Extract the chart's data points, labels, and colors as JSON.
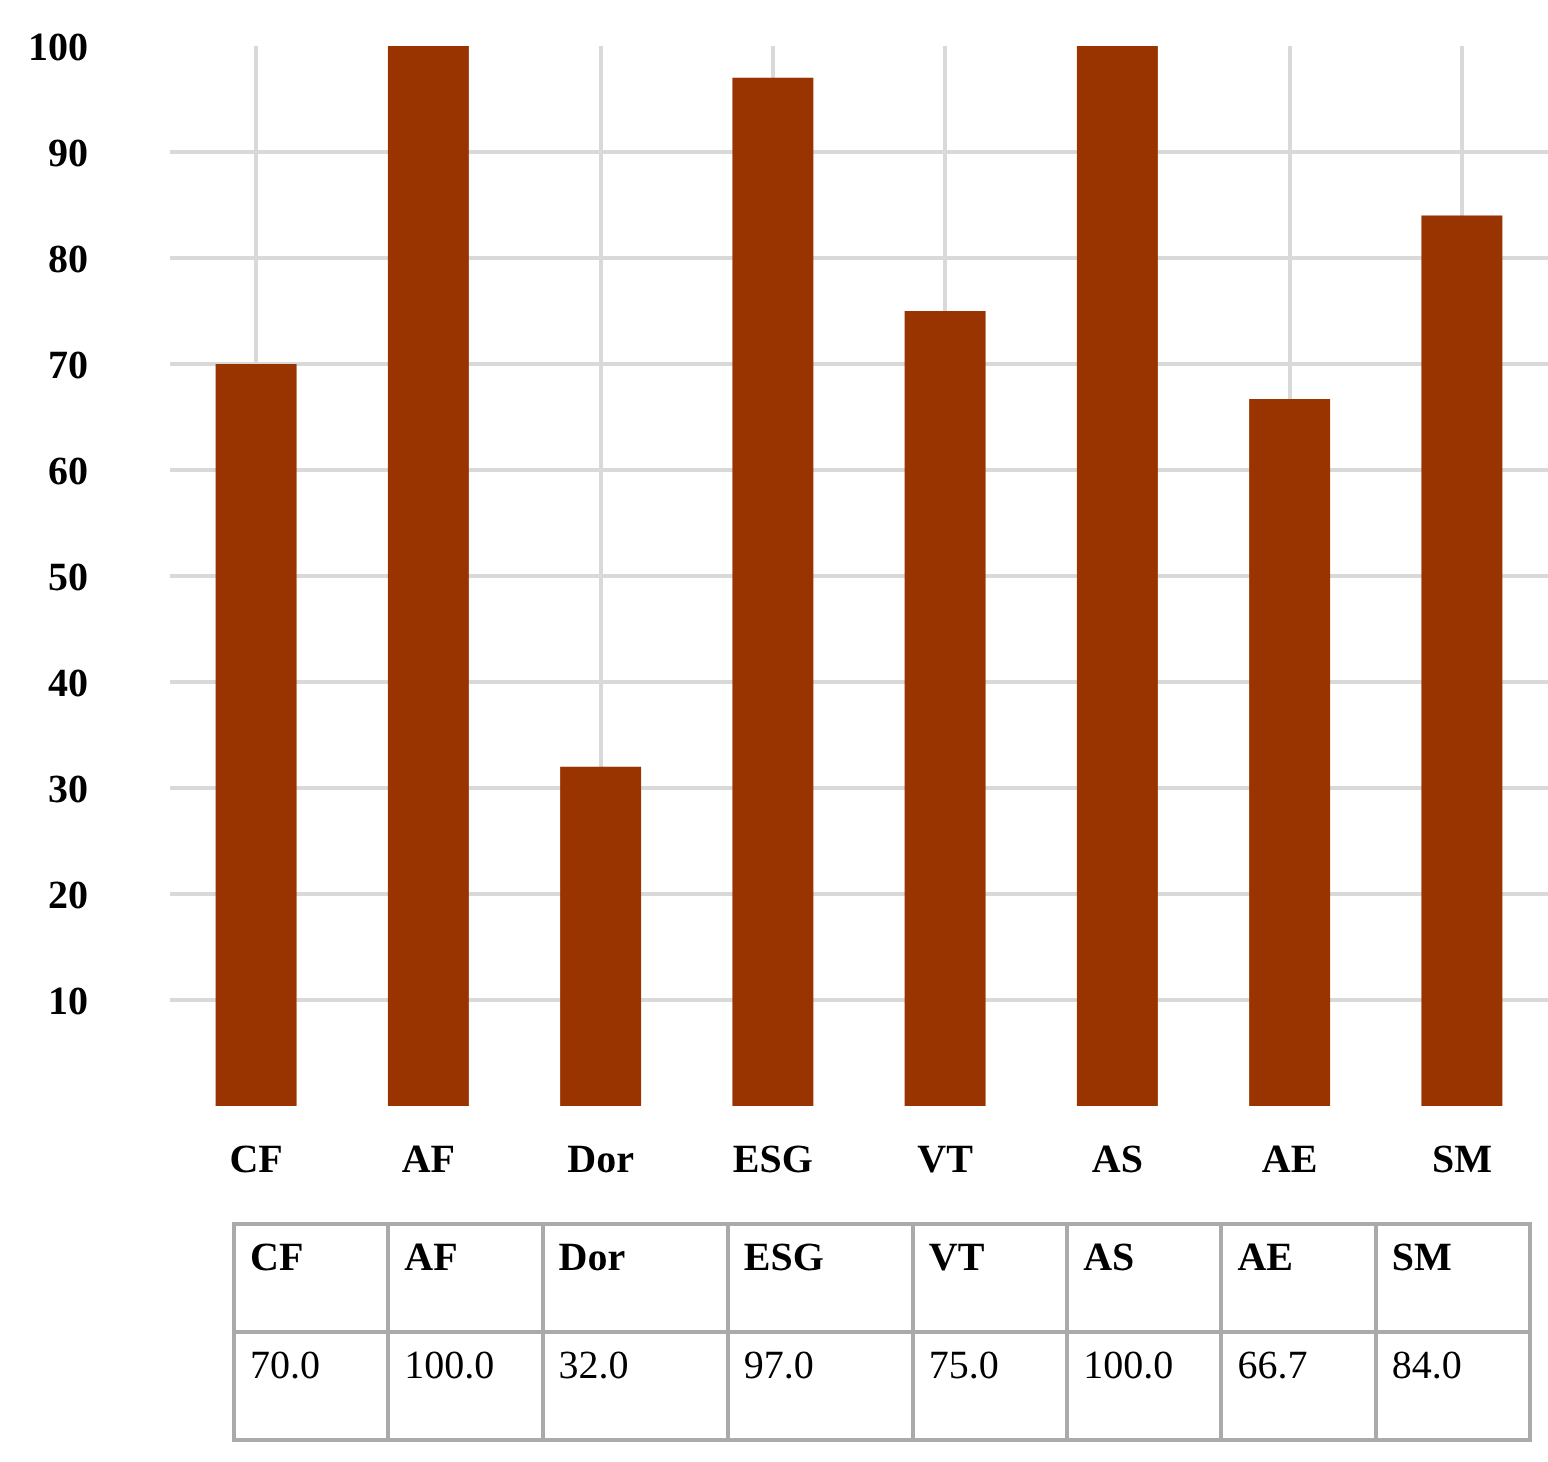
{
  "chart_data": {
    "type": "bar",
    "categories": [
      "CF",
      "AF",
      "Dor",
      "ESG",
      "VT",
      "AS",
      "AE",
      "SM"
    ],
    "values": [
      70.0,
      100.0,
      32.0,
      97.0,
      75.0,
      100.0,
      66.7,
      84.0
    ],
    "value_labels": [
      "70.0",
      "100.0",
      "32.0",
      "97.0",
      "75.0",
      "100.0",
      "66.7",
      "84.0"
    ],
    "color": "#993300",
    "ylim": [
      0,
      100
    ],
    "yticks": [
      10,
      20,
      30,
      40,
      50,
      60,
      70,
      80,
      90,
      100
    ],
    "grid": true,
    "legend": false
  }
}
